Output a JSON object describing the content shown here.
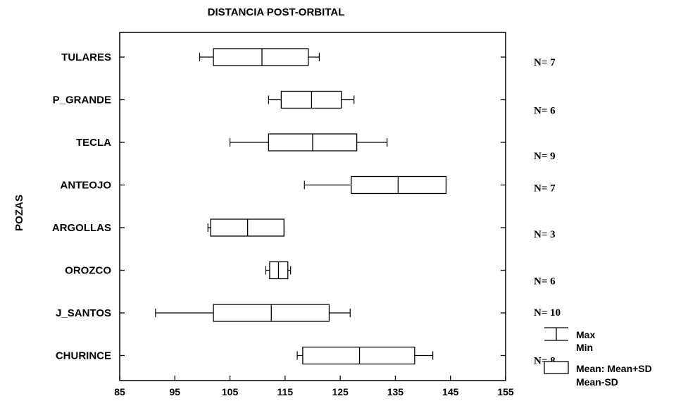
{
  "chart_data": {
    "type": "boxplot",
    "title": "DISTANCIA POST-ORBITAL",
    "ylabel": "POZAS",
    "xlabel": "",
    "xlim": [
      85,
      155
    ],
    "xticks": [
      85,
      95,
      105,
      115,
      125,
      135,
      145,
      155
    ],
    "grid": false,
    "legend_position": "bottom-right",
    "categories": [
      "TULARES",
      "P_GRANDE",
      "TECLA",
      "ANTEOJO",
      "ARGOLLAS",
      "OROZCO",
      "J_SANTOS",
      "CHURINCE"
    ],
    "series": [
      {
        "category": "TULARES",
        "min": 99.5,
        "mean_minus_sd": 102.0,
        "mean": 110.8,
        "mean_plus_sd": 119.2,
        "max": 121.2,
        "n_label": "N= 7"
      },
      {
        "category": "P_GRANDE",
        "min": 112.0,
        "mean_minus_sd": 114.3,
        "mean": 119.8,
        "mean_plus_sd": 125.2,
        "max": 127.5,
        "n_label": "N= 6"
      },
      {
        "category": "TECLA",
        "min": 105.0,
        "mean_minus_sd": 112.0,
        "mean": 120.0,
        "mean_plus_sd": 128.0,
        "max": 133.5,
        "n_label": "N= 9"
      },
      {
        "category": "ANTEOJO",
        "min": 118.5,
        "mean_minus_sd": 127.0,
        "mean": 135.5,
        "mean_plus_sd": 144.2,
        "max": 144.2,
        "n_label": "N= 7"
      },
      {
        "category": "ARGOLLAS",
        "min": 101.0,
        "mean_minus_sd": 101.5,
        "mean": 108.2,
        "mean_plus_sd": 114.8,
        "max": 114.8,
        "n_label": "N= 3"
      },
      {
        "category": "OROZCO",
        "min": 111.5,
        "mean_minus_sd": 112.2,
        "mean": 113.8,
        "mean_plus_sd": 115.5,
        "max": 116.0,
        "n_label": "N= 6"
      },
      {
        "category": "J_SANTOS",
        "min": 91.5,
        "mean_minus_sd": 102.0,
        "mean": 112.5,
        "mean_plus_sd": 123.0,
        "max": 126.8,
        "n_label": "N= 10"
      },
      {
        "category": "CHURINCE",
        "min": 117.2,
        "mean_minus_sd": 118.2,
        "mean": 128.5,
        "mean_plus_sd": 138.5,
        "max": 141.8,
        "n_label": "N= 8"
      }
    ],
    "legend": {
      "whisker_labels": [
        "Max",
        "Min"
      ],
      "box_labels": [
        "Mean: Mean+SD",
        "Mean-SD"
      ]
    }
  }
}
